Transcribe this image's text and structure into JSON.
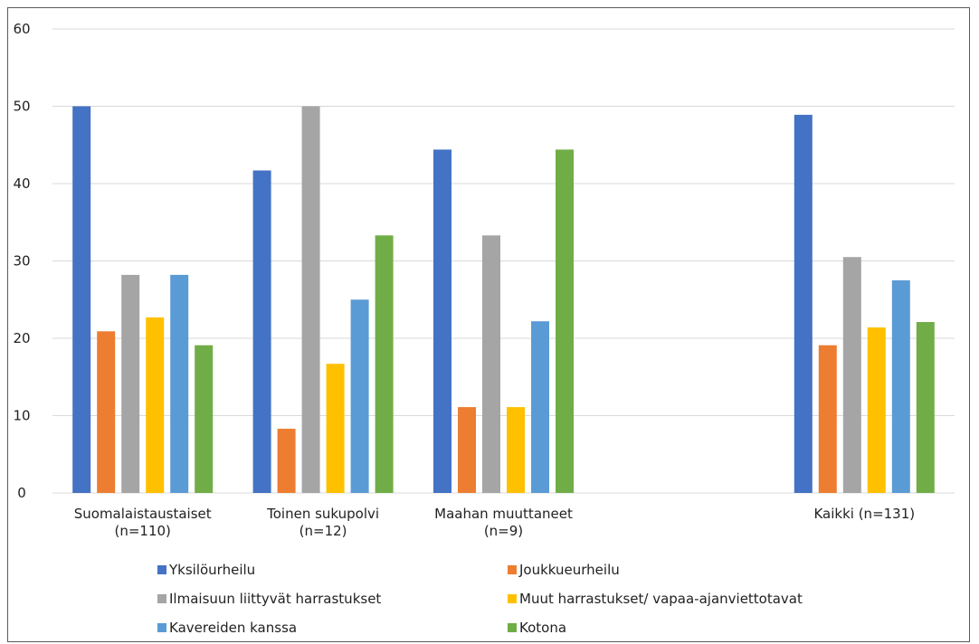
{
  "chart_data": {
    "type": "bar",
    "categories": [
      [
        "Suomalaistaustaiset",
        "(n=110)"
      ],
      [
        "Toinen sukupolvi",
        "(n=12)"
      ],
      [
        "Maahan muuttaneet",
        "(n=9)"
      ],
      [
        "",
        ""
      ],
      [
        "Kaikki (n=131)",
        ""
      ]
    ],
    "series": [
      {
        "name": "Yksilöurheilu",
        "color": "#4472C4",
        "values": [
          50.0,
          41.7,
          44.4,
          null,
          48.9
        ]
      },
      {
        "name": "Joukkueurheilu",
        "color": "#ED7D31",
        "values": [
          20.9,
          8.3,
          11.1,
          null,
          19.1
        ]
      },
      {
        "name": "Ilmaisuun liittyvät harrastukset",
        "color": "#A5A5A5",
        "values": [
          28.2,
          50.0,
          33.3,
          null,
          30.5
        ]
      },
      {
        "name": "Muut harrastukset/ vapaa-ajanviettotavat",
        "color": "#FFC000",
        "values": [
          22.7,
          16.7,
          11.1,
          null,
          21.4
        ]
      },
      {
        "name": "Kavereiden kanssa",
        "color": "#5B9BD5",
        "values": [
          28.2,
          25.0,
          22.2,
          null,
          27.5
        ]
      },
      {
        "name": "Kotona",
        "color": "#70AD47",
        "values": [
          19.1,
          33.3,
          44.4,
          null,
          22.1
        ]
      }
    ],
    "yticks": [
      "0",
      "10",
      "20",
      "30",
      "40",
      "50",
      "60"
    ],
    "ylim": [
      0,
      60
    ],
    "grid": true,
    "legend": "bottom",
    "title": "",
    "xlabel": "",
    "ylabel": ""
  }
}
